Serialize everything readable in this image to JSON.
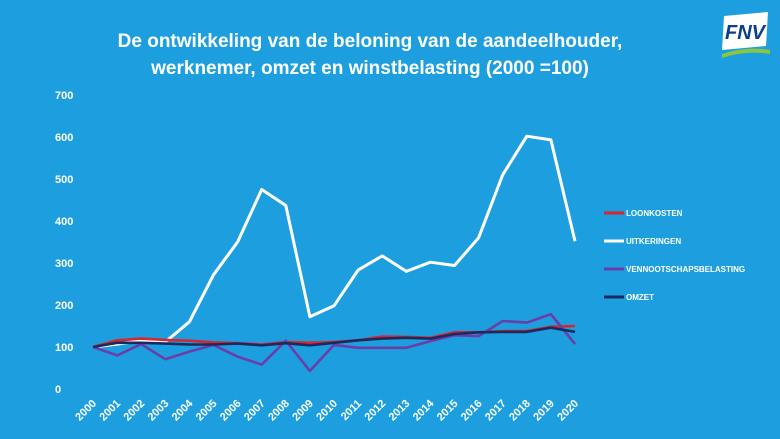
{
  "logo": {
    "text": "FNV",
    "colors": {
      "red": "#e30613",
      "blue": "#0a3f8f",
      "green": "#8cc63f"
    }
  },
  "colors": {
    "background": "#1d9fdf"
  },
  "chart_data": {
    "type": "line",
    "title_lines": [
      "De ontwikkeling van de beloning van de aandeelhouder,",
      "werknemer, omzet en winstbelasting (2000 =100)"
    ],
    "xlabel": "",
    "ylabel": "",
    "ylim": [
      0,
      700
    ],
    "yticks": [
      0,
      100,
      200,
      300,
      400,
      500,
      600,
      700
    ],
    "grid": false,
    "legend_position": "right",
    "x": [
      "2000",
      "2001",
      "2002",
      "2003",
      "2004",
      "2005",
      "2006",
      "2007",
      "2008",
      "2009",
      "2010",
      "2011",
      "2012",
      "2013",
      "2014",
      "2015",
      "2016",
      "2017",
      "2018",
      "2019",
      "2020"
    ],
    "series": [
      {
        "name": "LOONKOSTEN",
        "color": "#d7262e",
        "values": [
          100,
          116,
          120,
          117,
          115,
          111,
          109,
          106,
          112,
          110,
          112,
          116,
          125,
          124,
          122,
          135,
          135,
          138,
          138,
          148,
          150
        ]
      },
      {
        "name": "UITKERINGEN",
        "color": "#ffffff",
        "values": [
          100,
          107,
          115,
          112,
          160,
          272,
          350,
          475,
          437,
          172,
          198,
          283,
          317,
          280,
          302,
          294,
          360,
          510,
          602,
          593,
          352
        ]
      },
      {
        "name": "VENNOOTSCHAPSBELASTING",
        "color": "#6a3da8",
        "values": [
          100,
          80,
          107,
          71,
          89,
          105,
          77,
          58,
          115,
          43,
          105,
          98,
          98,
          98,
          114,
          128,
          126,
          162,
          158,
          178,
          107
        ]
      },
      {
        "name": "OMZET",
        "color": "#1b2a5e",
        "values": [
          100,
          110,
          110,
          108,
          106,
          106,
          108,
          104,
          109,
          104,
          110,
          116,
          120,
          122,
          120,
          131,
          135,
          136,
          136,
          146,
          136
        ]
      }
    ]
  }
}
